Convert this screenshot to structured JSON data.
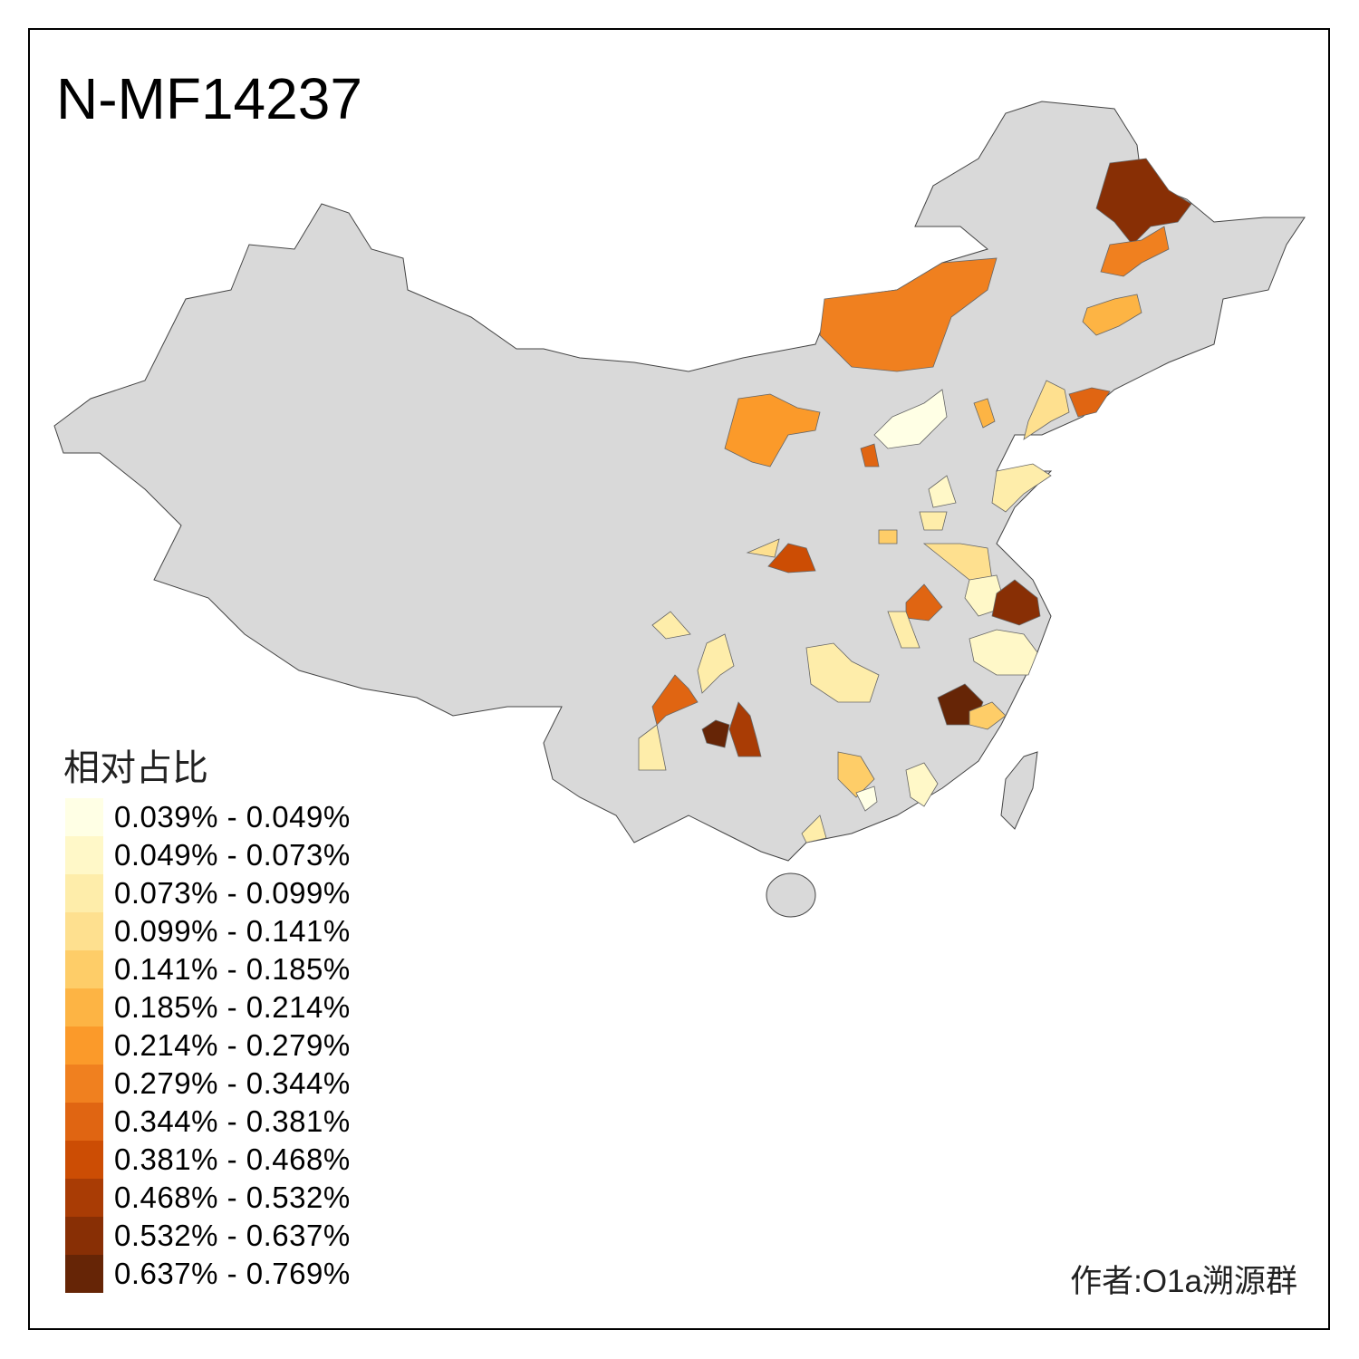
{
  "title": "N-MF14237",
  "legend": {
    "title": "相对占比",
    "items": [
      {
        "label": "0.039% - 0.049%",
        "color": "#FFFFE5"
      },
      {
        "label": "0.049% - 0.073%",
        "color": "#FFF8C8"
      },
      {
        "label": "0.073% - 0.099%",
        "color": "#FEEDAA"
      },
      {
        "label": "0.099% - 0.141%",
        "color": "#FEE08F"
      },
      {
        "label": "0.141% - 0.185%",
        "color": "#FECD68"
      },
      {
        "label": "0.185% - 0.214%",
        "color": "#FDB444"
      },
      {
        "label": "0.214% - 0.279%",
        "color": "#FB9A2A"
      },
      {
        "label": "0.279% - 0.344%",
        "color": "#F0801F"
      },
      {
        "label": "0.344% - 0.381%",
        "color": "#E06512"
      },
      {
        "label": "0.381% - 0.468%",
        "color": "#CC4D04"
      },
      {
        "label": "0.468% - 0.532%",
        "color": "#A93C05"
      },
      {
        "label": "0.532% - 0.637%",
        "color": "#882F05"
      },
      {
        "label": "0.637% - 0.769%",
        "color": "#662506"
      }
    ]
  },
  "author": "作者:O1a溯源群",
  "base_color": "#D9D9D9"
}
